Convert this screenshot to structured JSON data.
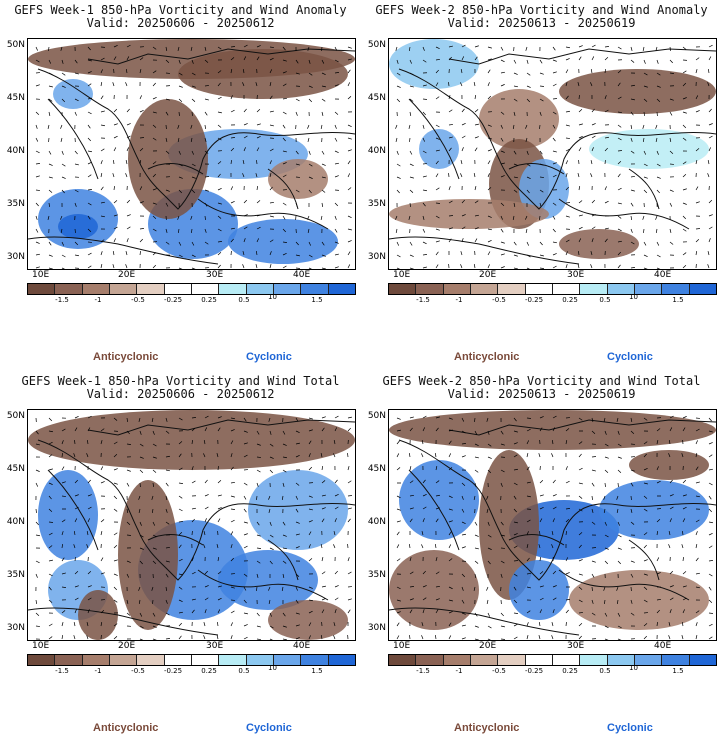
{
  "colors": {
    "cyclonic": "#1f66d6",
    "anticyclonic": "#7a4a3a",
    "scale": [
      "#6e4a3c",
      "#8a6254",
      "#a67e6c",
      "#c4a594",
      "#e4cfc2",
      "#ffffff",
      "#ffffff",
      "#b8ecf5",
      "#8cc8f0",
      "#6aa6ea",
      "#3f82e0",
      "#1f66d6"
    ]
  },
  "colorbar": {
    "labels": [
      "-1.5",
      "-1",
      "-0.5",
      "-0.25",
      "0.25",
      "0.5",
      "1.5"
    ],
    "ref_vector": "10"
  },
  "legend": {
    "anticyclonic": "Anticyclonic",
    "cyclonic": "Cyclonic"
  },
  "axes": {
    "lat_labels": [
      "50N",
      "45N",
      "40N",
      "35N",
      "30N"
    ],
    "lon_labels": [
      "10E",
      "20E",
      "30E",
      "40E"
    ]
  },
  "panels": [
    {
      "title": "GEFS Week-1 850-hPa Vorticity and Wind Anomaly",
      "valid": "Valid: 20250606 - 20250612"
    },
    {
      "title": "GEFS Week-2 850-hPa Vorticity and Wind Anomaly",
      "valid": "Valid: 20250613 - 20250619"
    },
    {
      "title": "GEFS Week-1 850-hPa Vorticity and Wind Total",
      "valid": "Valid: 20250606 - 20250612"
    },
    {
      "title": "GEFS Week-2 850-hPa Vorticity and Wind Total",
      "valid": "Valid: 20250613 - 20250619"
    }
  ]
}
